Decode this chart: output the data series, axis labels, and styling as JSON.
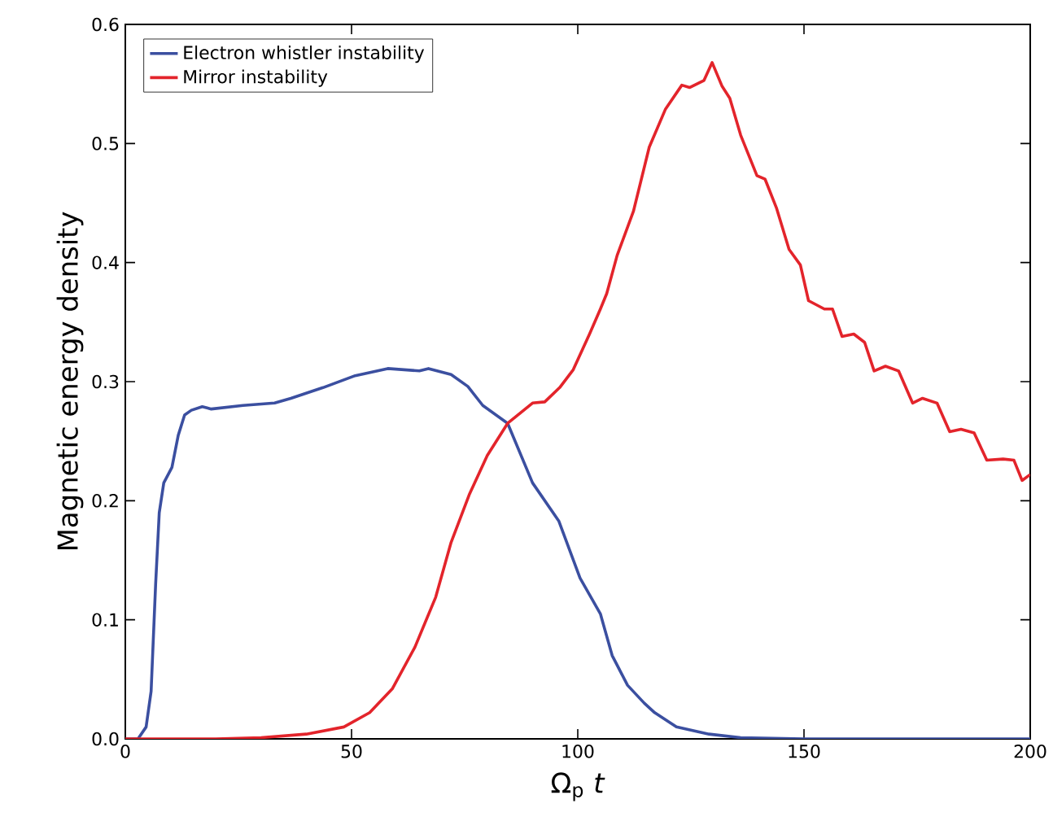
{
  "chart_data": {
    "type": "line",
    "xlabel": "Ω$_{p}$ *t*",
    "ylabel": "Magnetic energy density",
    "xlim": [
      0,
      200
    ],
    "ylim": [
      0,
      0.6
    ],
    "xticks": [
      0,
      50,
      100,
      150,
      200
    ],
    "yticks": [
      {
        "value": 0,
        "label": "0.0"
      },
      {
        "value": 0.1,
        "label": "0.1"
      },
      {
        "value": 0.2,
        "label": "0.2"
      },
      {
        "value": 0.3,
        "label": "0.3"
      },
      {
        "value": 0.4,
        "label": "0.4"
      },
      {
        "value": 0.5,
        "label": "0.5"
      },
      {
        "value": 0.6,
        "label": "0.6"
      }
    ],
    "grid": false,
    "legend": "top left",
    "marker": "none",
    "line_style": "solid",
    "series": [
      {
        "name": "Electron whistler instability",
        "color": "#3b4fa0",
        "x": [
          0,
          2.8,
          4.6,
          5.7,
          6.7,
          7.5,
          8.5,
          10.3,
          11.7,
          13.1,
          14.6,
          17,
          19,
          26,
          33,
          36.6,
          43.7,
          50.8,
          58,
          65,
          67,
          72,
          75.7,
          79,
          84.5,
          90,
          95.8,
          100.5,
          105,
          107.6,
          111,
          114.7,
          117,
          121.8,
          129,
          136,
          150,
          200
        ],
        "values": [
          0,
          0,
          0.01,
          0.04,
          0.13,
          0.19,
          0.215,
          0.228,
          0.255,
          0.272,
          0.276,
          0.279,
          0.277,
          0.28,
          0.282,
          0.286,
          0.295,
          0.305,
          0.311,
          0.309,
          0.311,
          0.306,
          0.296,
          0.28,
          0.265,
          0.215,
          0.183,
          0.135,
          0.105,
          0.07,
          0.045,
          0.03,
          0.022,
          0.01,
          0.004,
          0.001,
          0,
          0
        ]
      },
      {
        "name": "Mirror instability",
        "color": "#e3242b",
        "x": [
          0,
          20,
          30,
          40,
          48.3,
          54,
          59,
          64,
          68.6,
          72,
          76,
          80,
          84.5,
          90,
          92.7,
          96,
          99,
          102.6,
          105,
          106.4,
          108.7,
          112.3,
          115.8,
          119.4,
          123,
          124.7,
          127.9,
          129.7,
          131.9,
          133.6,
          136,
          139.6,
          141.4,
          143.9,
          146.7,
          149.2,
          151,
          154.5,
          156.3,
          158.4,
          161,
          163.4,
          165.5,
          168,
          170.9,
          174,
          176.2,
          179.4,
          182.2,
          184.7,
          187.6,
          190.4,
          194,
          196.4,
          198.2,
          200
        ],
        "values": [
          0,
          0,
          0.001,
          0.004,
          0.01,
          0.022,
          0.042,
          0.077,
          0.119,
          0.165,
          0.205,
          0.238,
          0.265,
          0.282,
          0.283,
          0.295,
          0.31,
          0.34,
          0.361,
          0.374,
          0.406,
          0.443,
          0.497,
          0.529,
          0.549,
          0.547,
          0.553,
          0.568,
          0.548,
          0.538,
          0.507,
          0.473,
          0.47,
          0.446,
          0.411,
          0.398,
          0.368,
          0.361,
          0.361,
          0.338,
          0.34,
          0.333,
          0.309,
          0.313,
          0.309,
          0.282,
          0.286,
          0.282,
          0.258,
          0.26,
          0.257,
          0.234,
          0.235,
          0.234,
          0.217,
          0.222
        ]
      }
    ]
  }
}
